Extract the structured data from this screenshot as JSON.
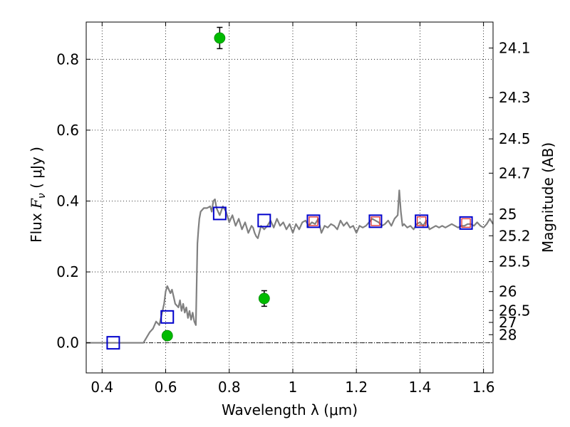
{
  "chart_data": {
    "type": "scatter",
    "title": "",
    "xlabel": "Wavelength  λ (μm)",
    "ylabel": "Flux  F_ν  ( μJy )",
    "ylabel_parts": {
      "prefix": "Flux  ",
      "symbol": "F",
      "subscript": "ν",
      "unit": "  ( μJy )"
    },
    "y2label": "Magnitude (AB)",
    "xlim": [
      0.35,
      1.63
    ],
    "ylim": [
      -0.085,
      0.905
    ],
    "grid": true,
    "x_ticks": [
      0.4,
      0.6,
      0.8,
      1.0,
      1.2,
      1.4,
      1.6
    ],
    "x_tick_labels": [
      "0.4",
      "0.6",
      "0.8",
      "1",
      "1.2",
      "1.4",
      "1.6"
    ],
    "y_ticks": [
      0.0,
      0.2,
      0.4,
      0.6,
      0.8
    ],
    "y_tick_labels": [
      "0.0",
      "0.2",
      "0.4",
      "0.6",
      "0.8"
    ],
    "y2_ticks": [
      {
        "label": "24.1",
        "flux": 0.8318
      },
      {
        "label": "24.3",
        "flux": 0.6918
      },
      {
        "label": "24.5",
        "flux": 0.5754
      },
      {
        "label": "24.7",
        "flux": 0.4786
      },
      {
        "label": "25",
        "flux": 0.3631
      },
      {
        "label": "25.2",
        "flux": 0.302
      },
      {
        "label": "25.5",
        "flux": 0.2291
      },
      {
        "label": "26",
        "flux": 0.1445
      },
      {
        "label": "26.5",
        "flux": 0.0912
      },
      {
        "label": "27",
        "flux": 0.0575
      },
      {
        "label": "28",
        "flux": 0.0229
      }
    ],
    "zero_line": 0.0,
    "series": [
      {
        "type": "line",
        "color": "#808080",
        "x": [
          0.35,
          0.4,
          0.45,
          0.5,
          0.52,
          0.53,
          0.55,
          0.56,
          0.57,
          0.58,
          0.585,
          0.59,
          0.595,
          0.6,
          0.605,
          0.61,
          0.615,
          0.62,
          0.625,
          0.63,
          0.64,
          0.645,
          0.65,
          0.655,
          0.66,
          0.665,
          0.67,
          0.675,
          0.68,
          0.685,
          0.69,
          0.695,
          0.7,
          0.703,
          0.706,
          0.71,
          0.72,
          0.73,
          0.74,
          0.745,
          0.75,
          0.755,
          0.76,
          0.77,
          0.78,
          0.79,
          0.8,
          0.81,
          0.82,
          0.83,
          0.84,
          0.85,
          0.86,
          0.87,
          0.875,
          0.88,
          0.885,
          0.89,
          0.9,
          0.91,
          0.92,
          0.93,
          0.94,
          0.95,
          0.96,
          0.97,
          0.98,
          0.99,
          1.0,
          1.01,
          1.02,
          1.03,
          1.04,
          1.05,
          1.06,
          1.07,
          1.08,
          1.09,
          1.1,
          1.11,
          1.12,
          1.13,
          1.14,
          1.15,
          1.16,
          1.17,
          1.18,
          1.19,
          1.2,
          1.21,
          1.22,
          1.23,
          1.24,
          1.25,
          1.26,
          1.27,
          1.28,
          1.29,
          1.3,
          1.31,
          1.32,
          1.33,
          1.335,
          1.34,
          1.345,
          1.35,
          1.36,
          1.37,
          1.38,
          1.39,
          1.4,
          1.41,
          1.42,
          1.43,
          1.44,
          1.45,
          1.46,
          1.47,
          1.48,
          1.49,
          1.5,
          1.51,
          1.52,
          1.53,
          1.54,
          1.55,
          1.56,
          1.57,
          1.58,
          1.59,
          1.6,
          1.61,
          1.62,
          1.63
        ],
        "y": [
          0.0,
          0.0,
          0.0,
          0.0,
          0.0,
          0.0,
          0.03,
          0.04,
          0.06,
          0.05,
          0.07,
          0.09,
          0.11,
          0.145,
          0.16,
          0.15,
          0.14,
          0.15,
          0.13,
          0.11,
          0.1,
          0.12,
          0.09,
          0.11,
          0.085,
          0.1,
          0.07,
          0.09,
          0.065,
          0.085,
          0.06,
          0.05,
          0.28,
          0.32,
          0.35,
          0.37,
          0.38,
          0.38,
          0.385,
          0.37,
          0.4,
          0.405,
          0.38,
          0.36,
          0.385,
          0.37,
          0.34,
          0.36,
          0.33,
          0.35,
          0.32,
          0.34,
          0.31,
          0.33,
          0.325,
          0.31,
          0.3,
          0.295,
          0.33,
          0.32,
          0.33,
          0.345,
          0.325,
          0.35,
          0.33,
          0.34,
          0.32,
          0.335,
          0.31,
          0.335,
          0.32,
          0.34,
          0.345,
          0.33,
          0.34,
          0.335,
          0.35,
          0.31,
          0.33,
          0.325,
          0.335,
          0.33,
          0.32,
          0.345,
          0.33,
          0.34,
          0.325,
          0.33,
          0.31,
          0.33,
          0.325,
          0.33,
          0.34,
          0.35,
          0.345,
          0.34,
          0.33,
          0.335,
          0.345,
          0.33,
          0.35,
          0.36,
          0.43,
          0.37,
          0.33,
          0.335,
          0.325,
          0.33,
          0.32,
          0.335,
          0.34,
          0.33,
          0.345,
          0.32,
          0.325,
          0.33,
          0.325,
          0.33,
          0.325,
          0.33,
          0.335,
          0.33,
          0.325,
          0.33,
          0.33,
          0.335,
          0.335,
          0.33,
          0.34,
          0.33,
          0.325,
          0.335,
          0.35,
          0.335
        ]
      },
      {
        "name": "",
        "type": "square",
        "color": "#0000cc",
        "x": [
          0.435,
          0.605,
          0.77,
          0.91,
          1.065,
          1.26,
          1.405,
          1.545
        ],
        "y": [
          0.0,
          0.073,
          0.365,
          0.345,
          0.343,
          0.343,
          0.343,
          0.338
        ]
      },
      {
        "name": "",
        "type": "square",
        "color": "#e03030",
        "x": [
          1.065,
          1.26,
          1.405,
          1.545
        ],
        "y": [
          0.343,
          0.343,
          0.343,
          0.338
        ]
      },
      {
        "name": "",
        "type": "point",
        "color": "#00bb00",
        "x": [
          0.605,
          0.77,
          0.91
        ],
        "y": [
          0.02,
          0.86,
          0.125
        ],
        "yerr": [
          0.01,
          0.03,
          0.022
        ]
      }
    ]
  }
}
